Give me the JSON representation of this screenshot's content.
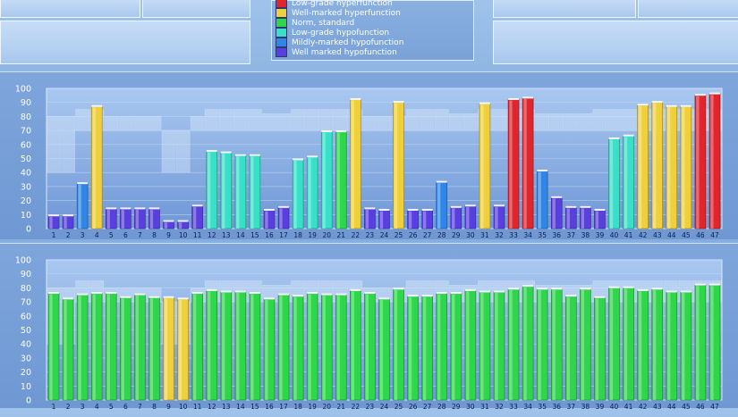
{
  "legend": [
    {
      "label": "Low-grade hyperfunction",
      "color": "#e0262c"
    },
    {
      "label": "Well-marked hyperfunction",
      "color": "#efd03a"
    },
    {
      "label": "Norm, standard",
      "color": "#2ed64a"
    },
    {
      "label": "Low-grade hypofunction",
      "color": "#38e0c8"
    },
    {
      "label": "Mildly-marked hypofunction",
      "color": "#2f86e6"
    },
    {
      "label": "Well marked hypofunction",
      "color": "#5a3fe0"
    }
  ],
  "chart_data": [
    {
      "type": "bar",
      "title": "",
      "xlabel": "",
      "ylabel": "",
      "ylim": [
        0,
        100
      ],
      "yticks": [
        0,
        10,
        20,
        30,
        40,
        50,
        60,
        70,
        80,
        90,
        100
      ],
      "grid": true,
      "categories": [
        "1",
        "2",
        "3",
        "4",
        "5",
        "6",
        "7",
        "8",
        "9",
        "10",
        "11",
        "12",
        "13",
        "14",
        "15",
        "16",
        "17",
        "18",
        "19",
        "20",
        "21",
        "22",
        "23",
        "24",
        "25",
        "26",
        "27",
        "28",
        "29",
        "30",
        "31",
        "32",
        "33",
        "34",
        "35",
        "36",
        "37",
        "38",
        "39",
        "40",
        "41",
        "42",
        "43",
        "44",
        "45",
        "46",
        "47"
      ],
      "values": [
        9,
        9,
        32,
        87,
        14,
        14,
        14,
        14,
        5,
        5,
        16,
        55,
        54,
        52,
        52,
        13,
        15,
        49,
        51,
        69,
        69,
        92,
        14,
        13,
        90,
        13,
        13,
        33,
        15,
        16,
        89,
        16,
        92,
        93,
        41,
        22,
        15,
        15,
        13,
        64,
        66,
        88,
        90,
        87,
        87,
        95,
        96
      ],
      "colors": [
        "#5a3fe0",
        "#5a3fe0",
        "#2f86e6",
        "#efd03a",
        "#5a3fe0",
        "#5a3fe0",
        "#5a3fe0",
        "#5a3fe0",
        "#5a3fe0",
        "#5a3fe0",
        "#5a3fe0",
        "#38e0c8",
        "#38e0c8",
        "#38e0c8",
        "#38e0c8",
        "#5a3fe0",
        "#5a3fe0",
        "#38e0c8",
        "#38e0c8",
        "#38e0c8",
        "#2ed64a",
        "#efd03a",
        "#5a3fe0",
        "#5a3fe0",
        "#efd03a",
        "#5a3fe0",
        "#5a3fe0",
        "#2f86e6",
        "#5a3fe0",
        "#5a3fe0",
        "#efd03a",
        "#5a3fe0",
        "#e0262c",
        "#e0262c",
        "#2f86e6",
        "#5a3fe0",
        "#5a3fe0",
        "#5a3fe0",
        "#5a3fe0",
        "#38e0c8",
        "#38e0c8",
        "#efd03a",
        "#efd03a",
        "#efd03a",
        "#efd03a",
        "#e0262c",
        "#e0262c"
      ],
      "norm_low": [
        40,
        40,
        70,
        70,
        70,
        70,
        70,
        70,
        40,
        40,
        70,
        70,
        70,
        70,
        70,
        70,
        70,
        70,
        70,
        70,
        70,
        70,
        70,
        70,
        70,
        70,
        70,
        70,
        70,
        70,
        70,
        70,
        70,
        70,
        70,
        70,
        70,
        70,
        70,
        70,
        70,
        70,
        70,
        70,
        70,
        70,
        70
      ],
      "norm_high": [
        80,
        80,
        85,
        85,
        80,
        80,
        80,
        80,
        70,
        70,
        80,
        85,
        85,
        85,
        85,
        82,
        82,
        85,
        85,
        85,
        85,
        85,
        80,
        80,
        80,
        85,
        85,
        85,
        82,
        82,
        85,
        85,
        85,
        85,
        82,
        82,
        82,
        82,
        85,
        85,
        85,
        85,
        85,
        85,
        85,
        85,
        85
      ]
    },
    {
      "type": "bar",
      "title": "",
      "xlabel": "",
      "ylabel": "",
      "ylim": [
        0,
        100
      ],
      "yticks": [
        0,
        10,
        20,
        30,
        40,
        50,
        60,
        70,
        80,
        90,
        100
      ],
      "grid": true,
      "categories": [
        "1",
        "2",
        "3",
        "4",
        "5",
        "6",
        "7",
        "8",
        "9",
        "10",
        "11",
        "12",
        "13",
        "14",
        "15",
        "16",
        "17",
        "18",
        "19",
        "20",
        "21",
        "22",
        "23",
        "24",
        "25",
        "26",
        "27",
        "28",
        "29",
        "30",
        "31",
        "32",
        "33",
        "34",
        "35",
        "36",
        "37",
        "38",
        "39",
        "40",
        "41",
        "42",
        "43",
        "44",
        "45",
        "46",
        "47"
      ],
      "values": [
        76,
        72,
        75,
        76,
        76,
        73,
        75,
        73,
        73,
        72,
        76,
        78,
        77,
        77,
        76,
        72,
        75,
        74,
        76,
        75,
        75,
        78,
        76,
        72,
        79,
        74,
        74,
        76,
        76,
        78,
        77,
        77,
        79,
        81,
        79,
        79,
        74,
        79,
        73,
        80,
        80,
        78,
        79,
        77,
        77,
        82,
        82
      ],
      "colors": [
        "#2ed64a",
        "#2ed64a",
        "#2ed64a",
        "#2ed64a",
        "#2ed64a",
        "#2ed64a",
        "#2ed64a",
        "#2ed64a",
        "#efd03a",
        "#efd03a",
        "#2ed64a",
        "#2ed64a",
        "#2ed64a",
        "#2ed64a",
        "#2ed64a",
        "#2ed64a",
        "#2ed64a",
        "#2ed64a",
        "#2ed64a",
        "#2ed64a",
        "#2ed64a",
        "#2ed64a",
        "#2ed64a",
        "#2ed64a",
        "#2ed64a",
        "#2ed64a",
        "#2ed64a",
        "#2ed64a",
        "#2ed64a",
        "#2ed64a",
        "#2ed64a",
        "#2ed64a",
        "#2ed64a",
        "#2ed64a",
        "#2ed64a",
        "#2ed64a",
        "#2ed64a",
        "#2ed64a",
        "#2ed64a",
        "#2ed64a",
        "#2ed64a",
        "#2ed64a",
        "#2ed64a",
        "#2ed64a",
        "#2ed64a",
        "#2ed64a",
        "#2ed64a"
      ],
      "norm_low": [
        40,
        40,
        70,
        70,
        70,
        70,
        70,
        70,
        40,
        40,
        70,
        70,
        70,
        70,
        70,
        70,
        70,
        70,
        70,
        70,
        70,
        70,
        70,
        70,
        70,
        70,
        70,
        70,
        70,
        70,
        70,
        70,
        70,
        70,
        70,
        70,
        70,
        70,
        70,
        70,
        70,
        70,
        70,
        70,
        70,
        70,
        70
      ],
      "norm_high": [
        80,
        80,
        85,
        85,
        80,
        80,
        80,
        80,
        70,
        70,
        80,
        85,
        85,
        85,
        85,
        82,
        82,
        85,
        85,
        85,
        85,
        85,
        80,
        80,
        80,
        85,
        85,
        85,
        82,
        82,
        85,
        85,
        85,
        85,
        82,
        82,
        82,
        82,
        85,
        85,
        85,
        85,
        85,
        85,
        85,
        85,
        85
      ]
    }
  ]
}
